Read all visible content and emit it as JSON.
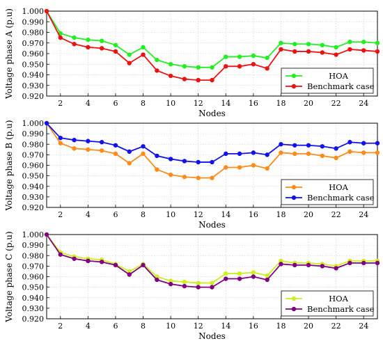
{
  "chart_data": [
    {
      "type": "line",
      "xlabel": "Nodes",
      "ylabel": "Voltage phase A (p.u)",
      "xlim": [
        1,
        25
      ],
      "ylim": [
        0.92,
        1.0
      ],
      "yticks": [
        "0.920",
        "0.930",
        "0.940",
        "0.950",
        "0.960",
        "0.970",
        "0.980",
        "0.990",
        "1.000"
      ],
      "xticks": [
        2,
        4,
        6,
        8,
        10,
        12,
        14,
        16,
        18,
        20,
        22,
        24
      ],
      "grid": true,
      "legend_position": "bottom-right",
      "x": [
        1,
        2,
        3,
        4,
        5,
        6,
        7,
        8,
        9,
        10,
        11,
        12,
        13,
        14,
        15,
        16,
        17,
        18,
        19,
        20,
        21,
        22,
        23,
        24,
        25
      ],
      "series": [
        {
          "name": "HOA",
          "color": "#22ee22",
          "values": [
            1.0,
            0.979,
            0.975,
            0.973,
            0.972,
            0.968,
            0.959,
            0.966,
            0.954,
            0.95,
            0.948,
            0.947,
            0.947,
            0.957,
            0.957,
            0.958,
            0.956,
            0.97,
            0.969,
            0.969,
            0.968,
            0.966,
            0.971,
            0.971,
            0.97
          ]
        },
        {
          "name": "Benchmark case",
          "color": "#ee1111",
          "values": [
            1.0,
            0.975,
            0.969,
            0.966,
            0.965,
            0.962,
            0.951,
            0.959,
            0.944,
            0.939,
            0.936,
            0.935,
            0.935,
            0.948,
            0.948,
            0.95,
            0.946,
            0.964,
            0.962,
            0.962,
            0.961,
            0.959,
            0.964,
            0.963,
            0.962
          ]
        }
      ]
    },
    {
      "type": "line",
      "xlabel": "Nodes",
      "ylabel": "Voltage phase B (p.u)",
      "xlim": [
        1,
        25
      ],
      "ylim": [
        0.92,
        1.0
      ],
      "yticks": [
        "0.920",
        "0.930",
        "0.940",
        "0.950",
        "0.960",
        "0.970",
        "0.980",
        "0.990",
        "1.000"
      ],
      "xticks": [
        2,
        4,
        6,
        8,
        10,
        12,
        14,
        16,
        18,
        20,
        22,
        24
      ],
      "grid": true,
      "legend_position": "bottom-right",
      "x": [
        1,
        2,
        3,
        4,
        5,
        6,
        7,
        8,
        9,
        10,
        11,
        12,
        13,
        14,
        15,
        16,
        17,
        18,
        19,
        20,
        21,
        22,
        23,
        24,
        25
      ],
      "series": [
        {
          "name": "HOA",
          "color": "#ff8c1a",
          "values": [
            1.0,
            0.981,
            0.976,
            0.975,
            0.974,
            0.971,
            0.962,
            0.971,
            0.956,
            0.951,
            0.949,
            0.948,
            0.948,
            0.958,
            0.958,
            0.96,
            0.957,
            0.972,
            0.971,
            0.971,
            0.969,
            0.967,
            0.973,
            0.972,
            0.972
          ]
        },
        {
          "name": "Benchmark case",
          "color": "#1111ee",
          "values": [
            1.0,
            0.986,
            0.984,
            0.983,
            0.982,
            0.979,
            0.973,
            0.978,
            0.969,
            0.966,
            0.964,
            0.963,
            0.963,
            0.971,
            0.971,
            0.972,
            0.97,
            0.98,
            0.979,
            0.979,
            0.978,
            0.976,
            0.982,
            0.981,
            0.981
          ]
        }
      ]
    },
    {
      "type": "line",
      "xlabel": "Nodes",
      "ylabel": "Voltage phase C (p.u)",
      "xlim": [
        1,
        25
      ],
      "ylim": [
        0.92,
        1.0
      ],
      "yticks": [
        "0.920",
        "0.930",
        "0.940",
        "0.950",
        "0.960",
        "0.970",
        "0.980",
        "0.990",
        "1.000"
      ],
      "xticks": [
        2,
        4,
        6,
        8,
        10,
        12,
        14,
        16,
        18,
        20,
        22,
        24
      ],
      "grid": true,
      "legend_position": "bottom-right",
      "x": [
        1,
        2,
        3,
        4,
        5,
        6,
        7,
        8,
        9,
        10,
        11,
        12,
        13,
        14,
        15,
        16,
        17,
        18,
        19,
        20,
        21,
        22,
        23,
        24,
        25
      ],
      "series": [
        {
          "name": "HOA",
          "color": "#ccee22",
          "values": [
            1.0,
            0.983,
            0.979,
            0.977,
            0.976,
            0.972,
            0.965,
            0.972,
            0.96,
            0.956,
            0.955,
            0.954,
            0.954,
            0.963,
            0.963,
            0.964,
            0.961,
            0.975,
            0.973,
            0.973,
            0.972,
            0.97,
            0.975,
            0.975,
            0.975
          ]
        },
        {
          "name": "Benchmark case",
          "color": "#800080",
          "values": [
            1.0,
            0.981,
            0.977,
            0.975,
            0.974,
            0.971,
            0.962,
            0.971,
            0.957,
            0.953,
            0.951,
            0.95,
            0.95,
            0.958,
            0.958,
            0.96,
            0.957,
            0.972,
            0.971,
            0.971,
            0.97,
            0.968,
            0.973,
            0.973,
            0.973
          ]
        }
      ]
    }
  ]
}
